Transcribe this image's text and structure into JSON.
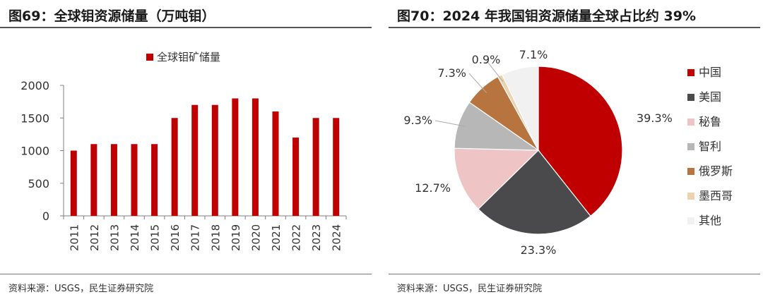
{
  "left": {
    "title": "图69：全球钼资源储量（万吨钼）",
    "source": "资料来源：USGS，民生证券研究院"
  },
  "right": {
    "title": "图70：2024 年我国钼资源储量全球占比约 39%",
    "source": "资料来源：USGS，民生证券研究院"
  },
  "chart_data": [
    {
      "type": "bar",
      "title": "",
      "xlabel": "",
      "ylabel": "",
      "categories": [
        "2011",
        "2012",
        "2013",
        "2014",
        "2015",
        "2016",
        "2017",
        "2018",
        "2019",
        "2020",
        "2021",
        "2022",
        "2023",
        "2024"
      ],
      "series": [
        {
          "name": "全球钼矿储量",
          "values": [
            1000,
            1100,
            1100,
            1100,
            1100,
            1500,
            1700,
            1700,
            1800,
            1800,
            1600,
            1200,
            1500,
            1500
          ],
          "color": "#c00000"
        }
      ],
      "ylim": [
        0,
        2000
      ],
      "yticks": [
        0,
        500,
        1000,
        1500,
        2000
      ],
      "grid": false,
      "legend": "top-center"
    },
    {
      "type": "pie",
      "title": "",
      "slices": [
        {
          "name": "中国",
          "value": 39.3,
          "label": "39.3%",
          "color": "#c00000"
        },
        {
          "name": "美国",
          "value": 23.3,
          "label": "23.3%",
          "color": "#4a4a4d"
        },
        {
          "name": "秘鲁",
          "value": 12.7,
          "label": "12.7%",
          "color": "#eec4c4"
        },
        {
          "name": "智利",
          "value": 9.3,
          "label": "9.3%",
          "color": "#b7b7b7"
        },
        {
          "name": "俄罗斯",
          "value": 7.3,
          "label": "7.3%",
          "color": "#b8743f"
        },
        {
          "name": "墨西哥",
          "value": 0.9,
          "label": "0.9%",
          "color": "#ecd3ae"
        },
        {
          "name": "其他",
          "value": 7.1,
          "label": "7.1%",
          "color": "#f1f1f1"
        }
      ],
      "legend": "right"
    }
  ]
}
